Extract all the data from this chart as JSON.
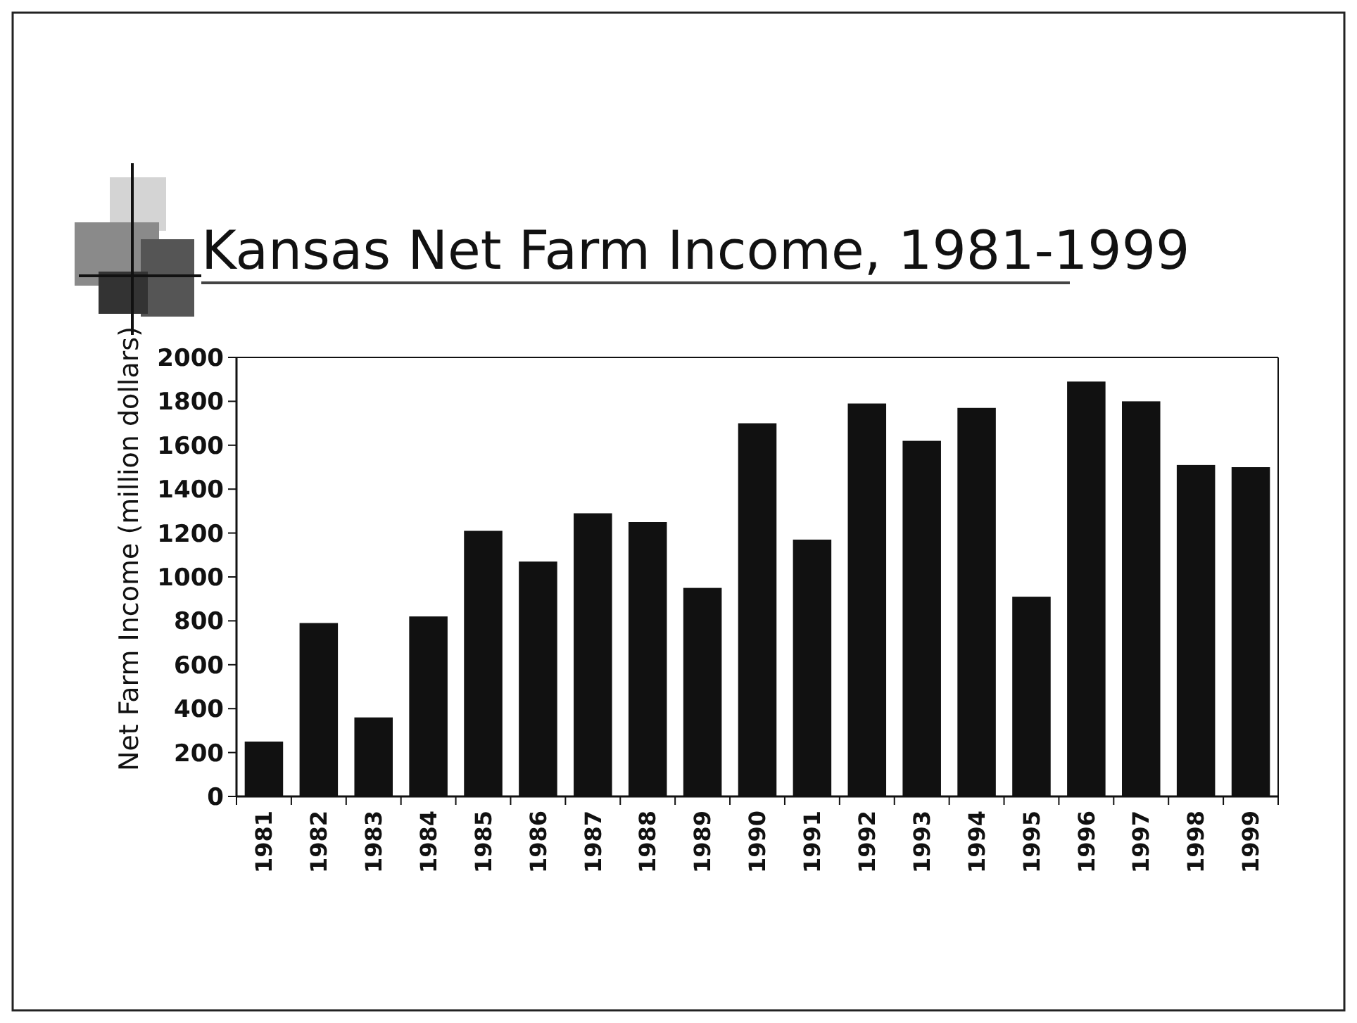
{
  "chart_data": {
    "type": "bar",
    "title": "Kansas Net Farm Income, 1981-1999",
    "ylabel": "Net Farm Income (million dollars)",
    "categories": [
      "1981",
      "1982",
      "1983",
      "1984",
      "1985",
      "1986",
      "1987",
      "1988",
      "1989",
      "1990",
      "1991",
      "1992",
      "1993",
      "1994",
      "1995",
      "1996",
      "1997",
      "1998",
      "1999"
    ],
    "values": [
      250,
      790,
      360,
      820,
      1210,
      1070,
      1290,
      1250,
      950,
      1700,
      1170,
      1790,
      1620,
      1770,
      910,
      1890,
      1800,
      1510,
      1500
    ],
    "color": "#111111",
    "ylim": [
      0,
      2000
    ],
    "yticks": [
      0,
      200,
      400,
      600,
      800,
      1000,
      1200,
      1400,
      1600,
      1800,
      2000
    ],
    "grid": false
  }
}
